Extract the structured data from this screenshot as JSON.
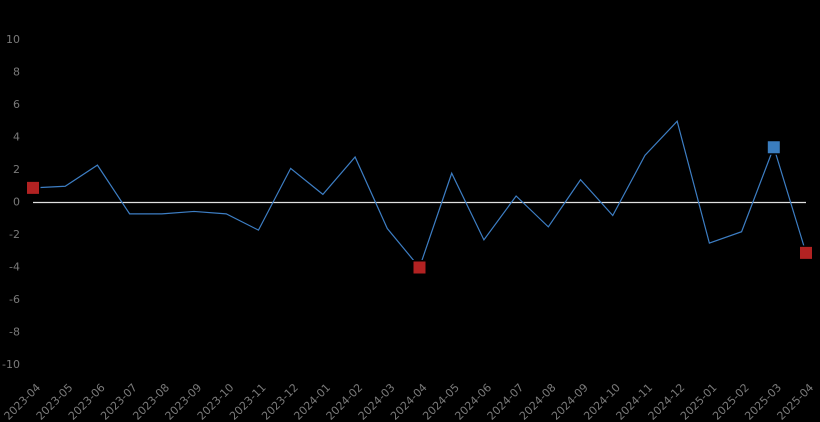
{
  "chart_data": {
    "type": "line",
    "categories": [
      "2023-04",
      "2023-05",
      "2023-06",
      "2023-07",
      "2023-08",
      "2023-09",
      "2023-10",
      "2023-11",
      "2023-12",
      "2024-01",
      "2024-02",
      "2024-03",
      "2024-04",
      "2024-05",
      "2024-06",
      "2024-07",
      "2024-08",
      "2024-09",
      "2024-10",
      "2024-11",
      "2024-12",
      "2025-01",
      "2025-02",
      "2025-03",
      "2025-04"
    ],
    "values": [
      0.9,
      1.0,
      2.3,
      -0.7,
      -0.7,
      -0.55,
      -0.7,
      -1.7,
      2.1,
      0.5,
      2.8,
      -1.6,
      -4.0,
      1.8,
      -2.3,
      0.4,
      -1.5,
      1.4,
      -0.8,
      2.9,
      5.0,
      -2.5,
      -1.8,
      3.4,
      -3.1
    ],
    "color": "#3d7ec4",
    "marker_colors": [
      "#b22222",
      null,
      null,
      null,
      null,
      null,
      null,
      null,
      null,
      null,
      null,
      null,
      "#b22222",
      null,
      null,
      null,
      null,
      null,
      null,
      null,
      null,
      null,
      null,
      "#3a7dbf",
      "#b22222"
    ],
    "ylim": [
      -10,
      10
    ],
    "yticks": [
      -10,
      -8,
      -6,
      -4,
      -2,
      0,
      2,
      4,
      6,
      8,
      10
    ],
    "hline": 0,
    "grid": false
  }
}
